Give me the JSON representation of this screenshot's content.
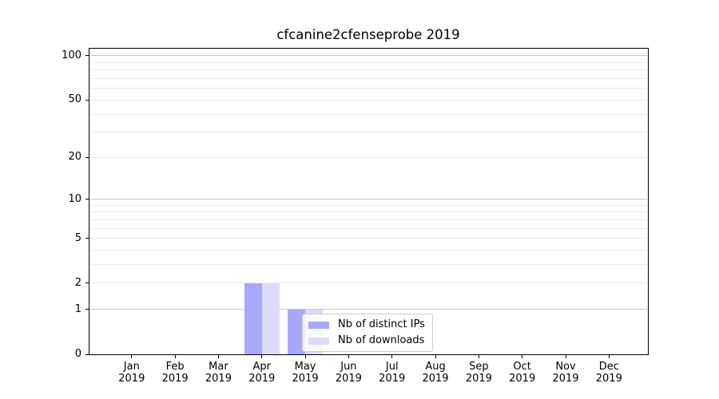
{
  "title": "cfcanine2cfenseprobe 2019",
  "chart_data": {
    "type": "bar",
    "title": "cfcanine2cfenseprobe 2019",
    "categories": [
      "Jan 2019",
      "Feb 2019",
      "Mar 2019",
      "Apr 2019",
      "May 2019",
      "Jun 2019",
      "Jul 2019",
      "Aug 2019",
      "Sep 2019",
      "Oct 2019",
      "Nov 2019",
      "Dec 2019"
    ],
    "series": [
      {
        "name": "Nb of distinct IPs",
        "color": "#a8a8f8",
        "values": [
          0,
          0,
          0,
          2,
          1,
          0,
          0,
          0,
          0,
          0,
          0,
          0
        ]
      },
      {
        "name": "Nb of downloads",
        "color": "#dbdbf9",
        "values": [
          0,
          0,
          0,
          2,
          1,
          0,
          0,
          0,
          0,
          0,
          0,
          0
        ]
      }
    ],
    "xlabel": "",
    "ylabel": "",
    "yscale": "log1p",
    "ylim": [
      0,
      113
    ],
    "yticks": [
      0,
      1,
      2,
      5,
      10,
      20,
      50,
      100
    ],
    "grid": "horizontal",
    "grid_major_values": [
      1,
      10,
      100
    ],
    "grid_minor_values": [
      2,
      3,
      4,
      5,
      6,
      7,
      8,
      9,
      20,
      30,
      40,
      50,
      60,
      70,
      80,
      90
    ],
    "legend_position": "inside-bottom-center"
  },
  "colors": {
    "background": "#ffffff",
    "axis": "#000000",
    "grid_major": "#c6c6c6",
    "grid_minor": "#ebebeb",
    "legend_border": "#cccccc"
  }
}
